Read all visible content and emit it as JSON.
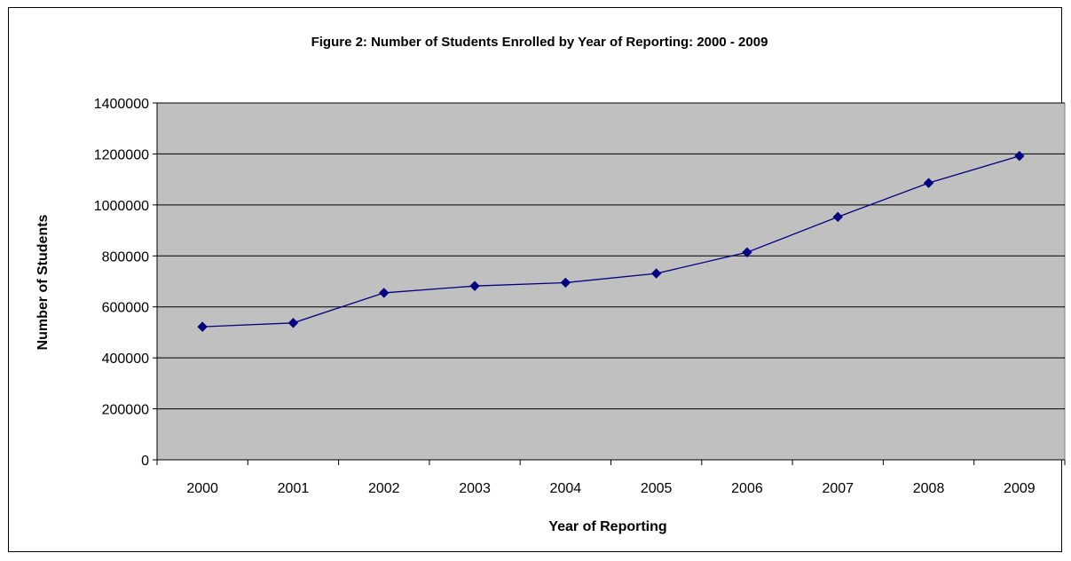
{
  "chart_data": {
    "type": "line",
    "title": "Figure 2: Number of Students Enrolled by Year of Reporting: 2000 - 2009",
    "xlabel": "Year of Reporting",
    "ylabel": "Number of Students",
    "categories": [
      "2000",
      "2001",
      "2002",
      "2003",
      "2004",
      "2005",
      "2006",
      "2007",
      "2008",
      "2009"
    ],
    "series": [
      {
        "values": [
          522000,
          537000,
          655000,
          682000,
          695000,
          731000,
          814000,
          953000,
          1086000,
          1192000
        ]
      }
    ],
    "ylim": [
      0,
      1400000
    ],
    "yticks": [
      "0",
      "200000",
      "400000",
      "600000",
      "800000",
      "1000000",
      "1200000",
      "1400000"
    ],
    "grid": true,
    "legend": "none",
    "colors": {
      "plot_background": "#c0c0c0",
      "line": "#000080",
      "marker": "#000080",
      "gridline": "#000000"
    }
  }
}
